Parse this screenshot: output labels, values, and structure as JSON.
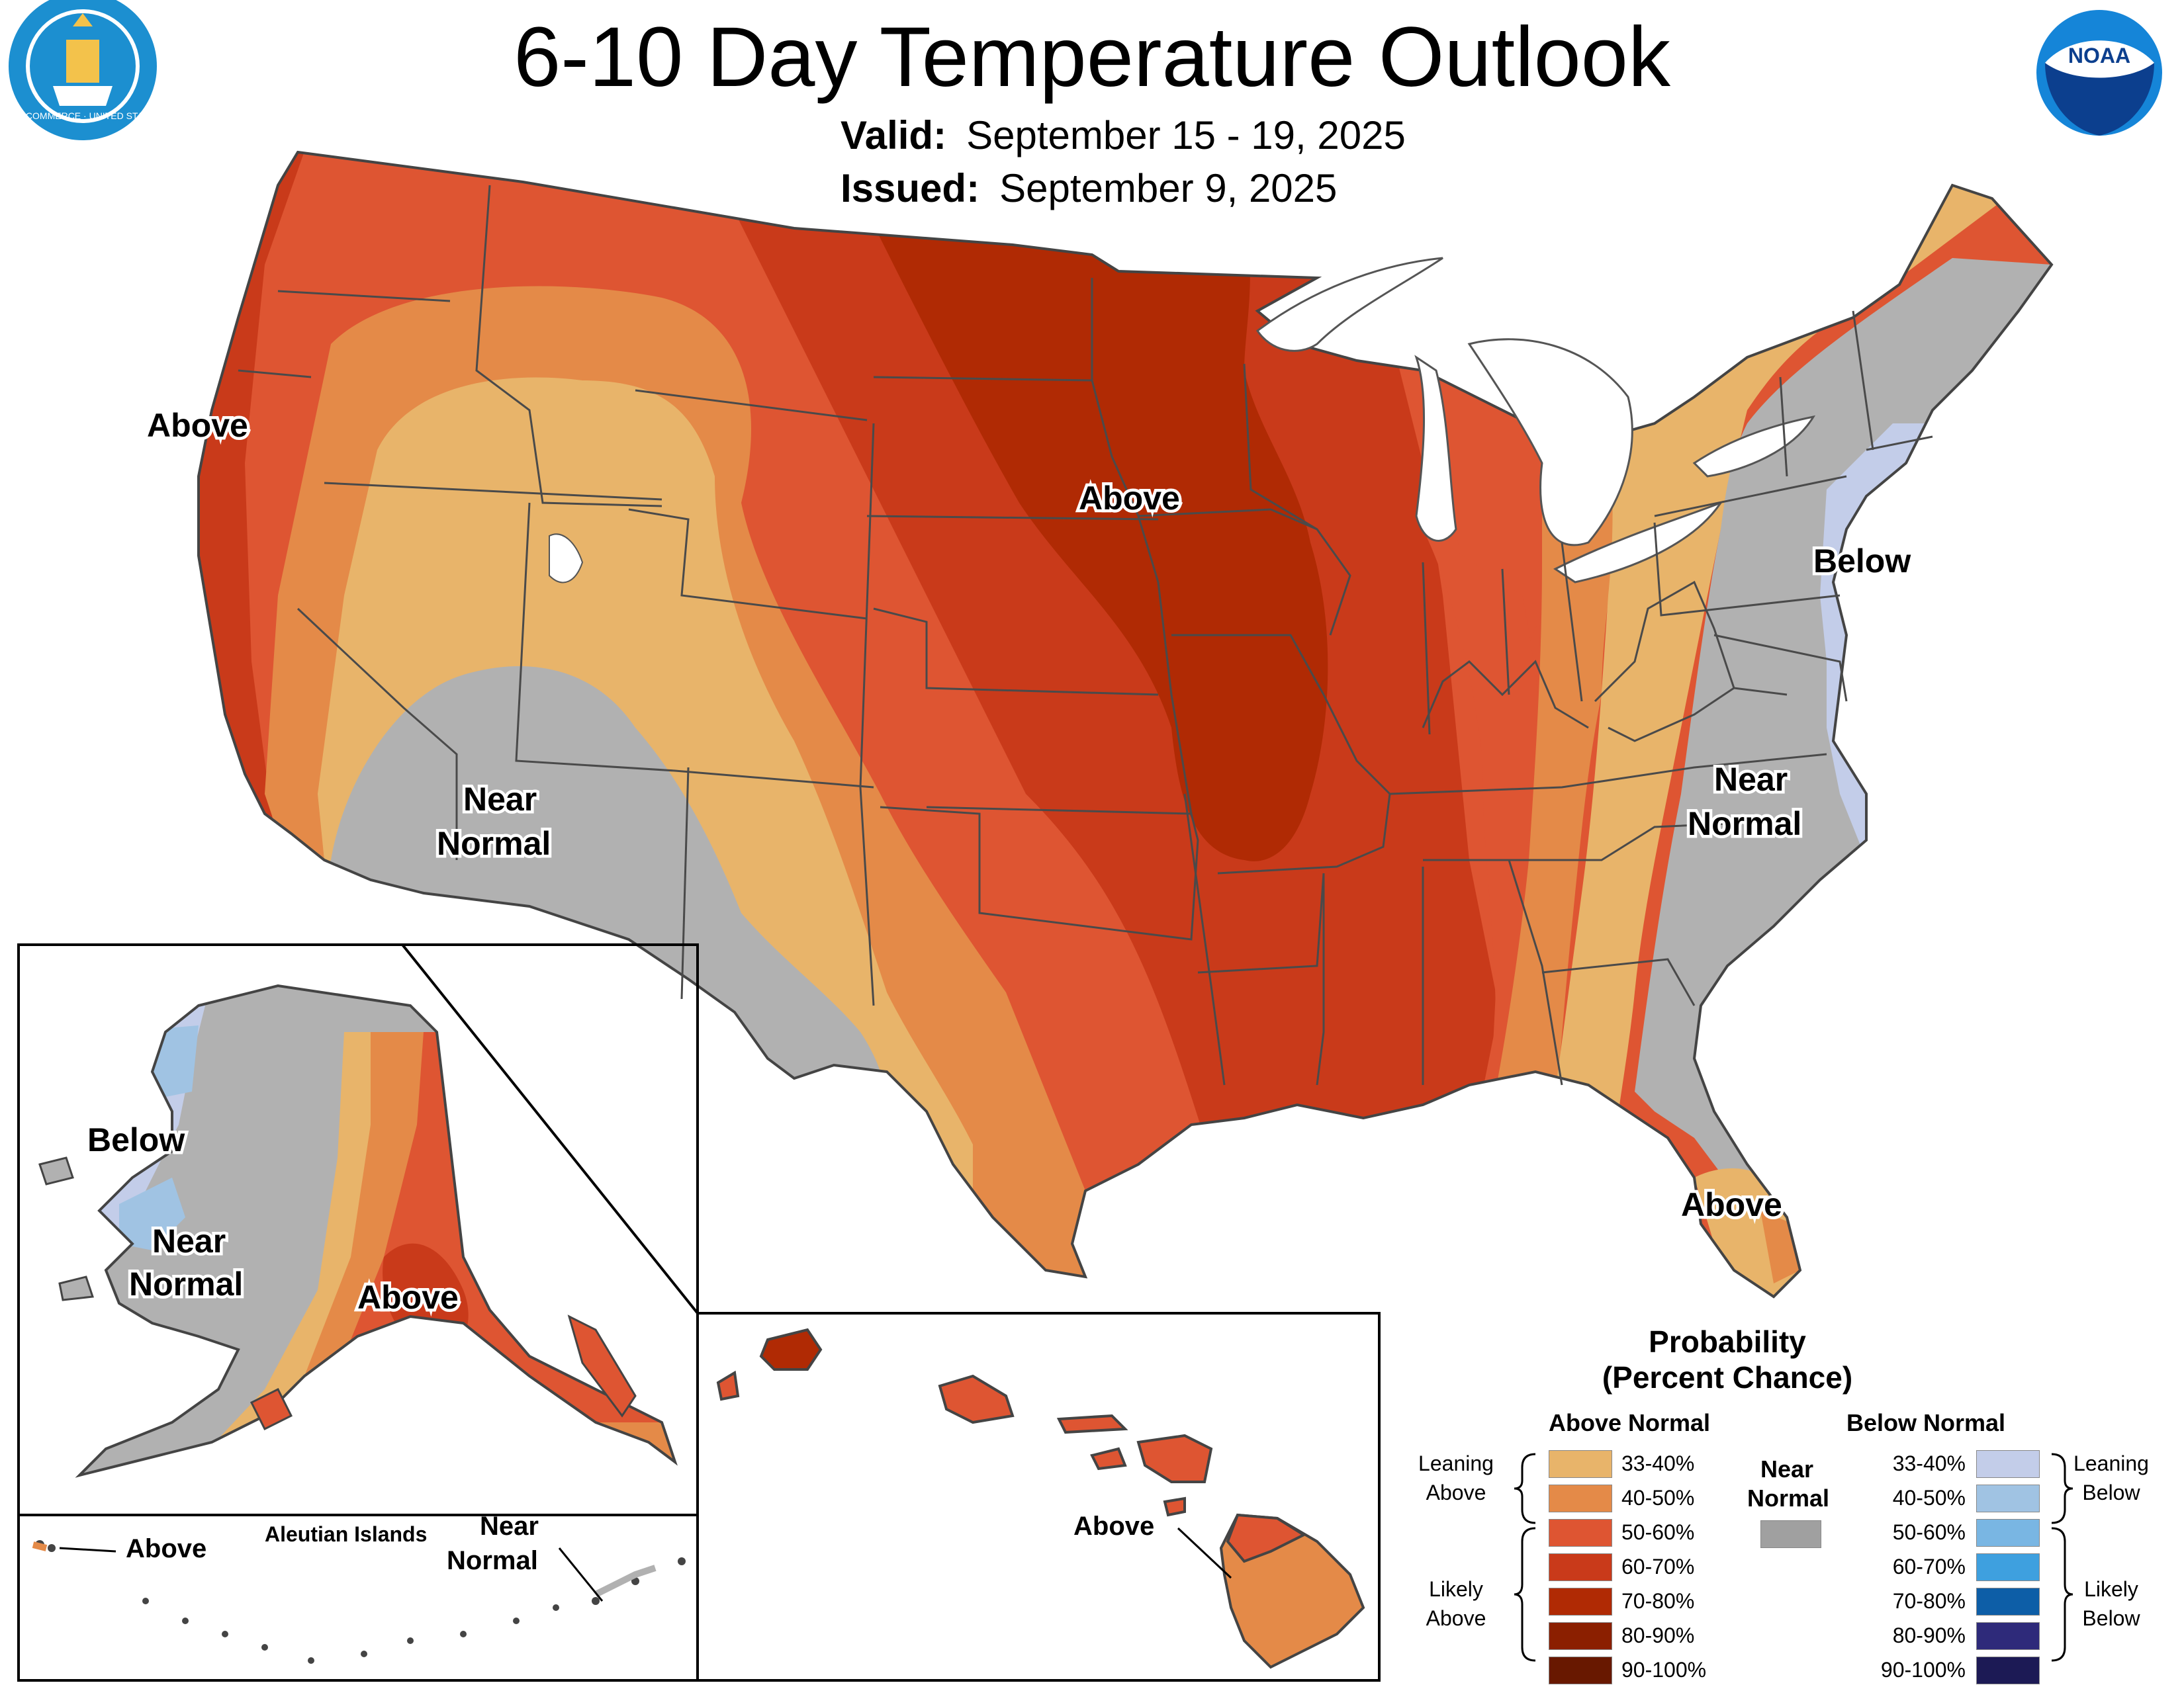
{
  "title": "6-10 Day Temperature Outlook",
  "valid": {
    "label": "Valid:",
    "value": "September 15 - 19, 2025"
  },
  "issued": {
    "label": "Issued:",
    "value": "September 9, 2025"
  },
  "logos": {
    "left_icon": "department-of-commerce-seal-icon",
    "right_icon": "noaa-logo-icon",
    "left_seal_text": "DEPARTMENT OF COMMERCE · UNITED STATES OF AMERICA",
    "right_logo_text": "NOAA"
  },
  "map_labels": {
    "conus_west": "Above",
    "conus_central": "Above",
    "conus_northeast": "Below",
    "conus_southwest": [
      "Near",
      "Normal"
    ],
    "conus_southeast": [
      "Near",
      "Normal"
    ],
    "conus_florida": "Above",
    "alaska_west": "Below",
    "alaska_central": [
      "Near",
      "Normal"
    ],
    "alaska_south": "Above",
    "aleutian_title": "Aleutian Islands",
    "aleutian_above": "Above",
    "aleutian_near": [
      "Near",
      "Normal"
    ],
    "hawaii_above": "Above"
  },
  "legend": {
    "title": [
      "Probability",
      "(Percent Chance)"
    ],
    "above_header": "Above Normal",
    "below_header": "Below Normal",
    "near": {
      "label": [
        "Near",
        "Normal"
      ],
      "color": "#a0a0a0"
    },
    "above_items": [
      {
        "label": "33-40%",
        "color": "#e8b46a"
      },
      {
        "label": "40-50%",
        "color": "#e48a48"
      },
      {
        "label": "50-60%",
        "color": "#de5532"
      },
      {
        "label": "60-70%",
        "color": "#c93a1a"
      },
      {
        "label": "70-80%",
        "color": "#b02a04"
      },
      {
        "label": "80-90%",
        "color": "#8b1f00"
      },
      {
        "label": "90-100%",
        "color": "#681800"
      }
    ],
    "below_items": [
      {
        "label": "33-40%",
        "color": "#c3cde9"
      },
      {
        "label": "40-50%",
        "color": "#a0c3e3"
      },
      {
        "label": "50-60%",
        "color": "#79b6e3"
      },
      {
        "label": "60-70%",
        "color": "#3ea0df"
      },
      {
        "label": "70-80%",
        "color": "#0d5ea7"
      },
      {
        "label": "80-90%",
        "color": "#2e2a7a"
      },
      {
        "label": "90-100%",
        "color": "#1c1a55"
      }
    ],
    "leaning_above": [
      "Leaning",
      "Above"
    ],
    "likely_above": [
      "Likely",
      "Above"
    ],
    "leaning_below": [
      "Leaning",
      "Below"
    ],
    "likely_below": [
      "Likely",
      "Below"
    ]
  }
}
